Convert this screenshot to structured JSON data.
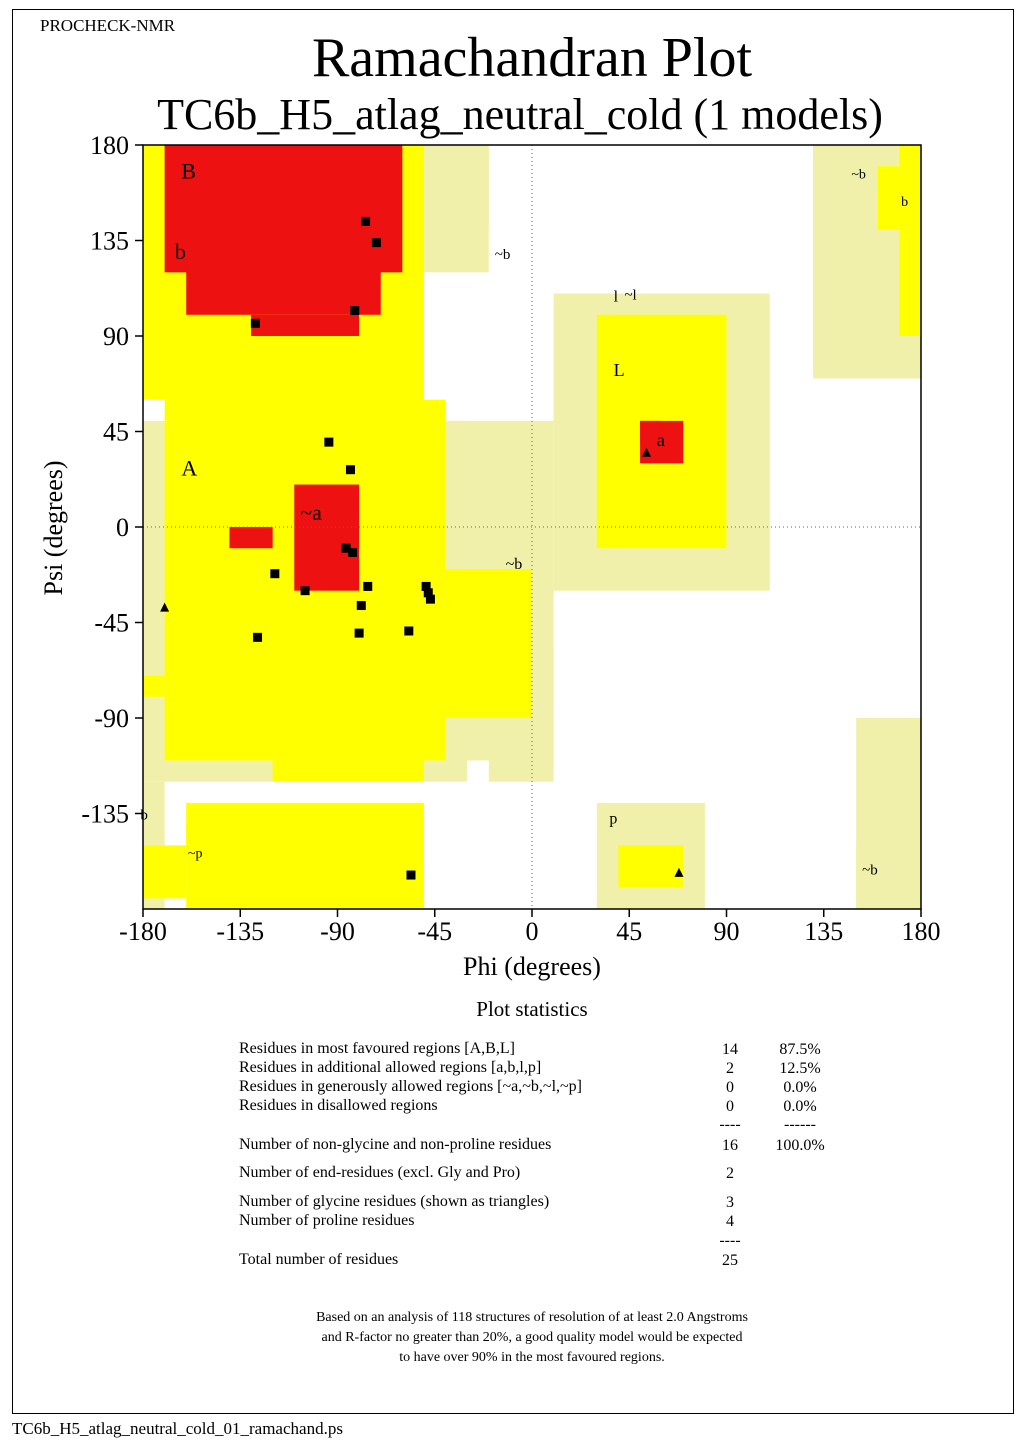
{
  "header": {
    "program": "PROCHECK-NMR",
    "title": "Ramachandran Plot",
    "subtitle": "TC6b_H5_atlag_neutral_cold (1 models)"
  },
  "chart_data": {
    "type": "scatter",
    "xlabel": "Phi (degrees)",
    "ylabel": "Psi (degrees)",
    "xlim": [
      -180,
      180
    ],
    "ylim": [
      -180,
      180
    ],
    "x_ticks": [
      "-180",
      "-135",
      "-90",
      "-45",
      "0",
      "45",
      "90",
      "135",
      "180"
    ],
    "y_ticks": [
      "180",
      "135",
      "90",
      "45",
      "0",
      "-45",
      "-90",
      "-135"
    ],
    "grid": false,
    "reference_lines": {
      "phi": 0,
      "psi": 0,
      "style": "dotted"
    },
    "colors": {
      "most_favoured": "#ee1111",
      "additional_allowed": "#ffff00",
      "generously_allowed": "#f0f0aa",
      "disallowed": "#ffffff",
      "outline": "#000000"
    },
    "region_labels": [
      "B",
      "b",
      "~b",
      "~l",
      "l",
      "L",
      "a",
      "A",
      "~a",
      "~b",
      "b",
      "~p",
      "p",
      "~b",
      "~b",
      "b"
    ],
    "series": [
      {
        "name": "",
        "marker": "square",
        "points": [
          [
            -77,
            144
          ],
          [
            -72,
            134
          ],
          [
            -128,
            96
          ],
          [
            -82,
            102
          ],
          [
            -94,
            40
          ],
          [
            -84,
            27
          ],
          [
            -86,
            -10
          ],
          [
            -83,
            -12
          ],
          [
            -119,
            -22
          ],
          [
            -105,
            -30
          ],
          [
            -76,
            -28
          ],
          [
            -49,
            -28
          ],
          [
            -48,
            -31
          ],
          [
            -47,
            -34
          ],
          [
            -79,
            -37
          ],
          [
            -57,
            -49
          ],
          [
            -80,
            -50
          ],
          [
            -127,
            -52
          ],
          [
            -56,
            -164
          ]
        ]
      },
      {
        "name": "",
        "marker": "triangle",
        "points": [
          [
            -170,
            -38
          ],
          [
            53,
            35
          ],
          [
            68,
            -163
          ]
        ]
      }
    ]
  },
  "statistics": {
    "heading": "Plot statistics",
    "rows": [
      {
        "label": "Residues in most favoured regions  [A,B,L]",
        "count": "14",
        "percent": "87.5%"
      },
      {
        "label": "Residues in additional allowed regions  [a,b,l,p]",
        "count": "2",
        "percent": "12.5%"
      },
      {
        "label": "Residues in generously allowed regions  [~a,~b,~l,~p]",
        "count": "0",
        "percent": "0.0%"
      },
      {
        "label": "Residues in disallowed regions",
        "count": "0",
        "percent": "0.0%"
      },
      {
        "label": "",
        "count": "----",
        "percent": "------"
      },
      {
        "label": "Number of non-glycine and non-proline residues",
        "count": "16",
        "percent": "100.0%"
      },
      {
        "label": "Number of end-residues (excl. Gly and Pro)",
        "count": "2",
        "percent": ""
      },
      {
        "label": "Number of glycine residues (shown as triangles)",
        "count": "3",
        "percent": ""
      },
      {
        "label": "Number of proline residues",
        "count": "4",
        "percent": ""
      },
      {
        "label": "",
        "count": "----",
        "percent": ""
      },
      {
        "label": "Total number of residues",
        "count": "25",
        "percent": ""
      }
    ],
    "note": [
      "Based on an analysis of 118 structures of resolution of at least 2.0 Angstroms",
      "and R-factor no greater than 20%, a good quality model would be expected",
      "to have over 90% in the most favoured regions."
    ]
  },
  "footer": {
    "filename": "TC6b_H5_atlag_neutral_cold_01_ramachand.ps"
  }
}
